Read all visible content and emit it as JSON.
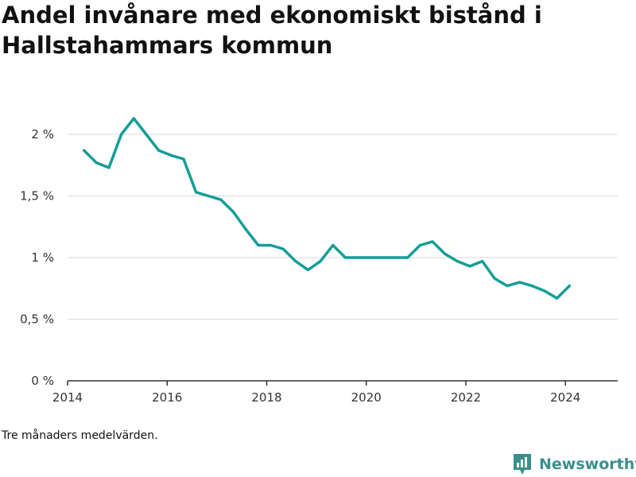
{
  "title": "Andel invånare med ekonomiskt bistånd i Hallstahammars kommun",
  "note": "Tre månaders medelvärden.",
  "brand": {
    "name": "Newsworthy",
    "icon": "newsworthy-logo-icon",
    "color": "#3a8f8c"
  },
  "colors": {
    "line": "#139e98",
    "grid": "#d9d9d9",
    "axis": "#333333",
    "tick_text": "#333333"
  },
  "chart_data": {
    "type": "line",
    "title": "Andel invånare med ekonomiskt bistånd i Hallstahammars kommun",
    "xlabel": "",
    "ylabel": "",
    "x_ticks": [
      "2014",
      "2016",
      "2018",
      "2020",
      "2022",
      "2024"
    ],
    "y_ticks": [
      "0 %",
      "0,5 %",
      "1 %",
      "1,5 %",
      "2 %"
    ],
    "y_tick_values": [
      0,
      0.5,
      1,
      1.5,
      2
    ],
    "xlim": [
      2014,
      2025.05
    ],
    "ylim": [
      0,
      2.2
    ],
    "grid": true,
    "series": [
      {
        "x": [
          2014.33,
          2014.58,
          2014.83,
          2015.08,
          2015.33,
          2015.58,
          2015.83,
          2016.08,
          2016.33,
          2016.58,
          2016.83,
          2017.08,
          2017.33,
          2017.58,
          2017.83,
          2018.08,
          2018.33,
          2018.58,
          2018.83,
          2019.08,
          2019.33,
          2019.58,
          2019.83,
          2020.08,
          2020.33,
          2020.58,
          2020.83,
          2021.08,
          2021.33,
          2021.58,
          2021.83,
          2022.08,
          2022.33,
          2022.58,
          2022.83,
          2023.08,
          2023.33,
          2023.58,
          2023.83,
          2024.08
        ],
        "values": [
          1.87,
          1.77,
          1.73,
          2.0,
          2.13,
          2.0,
          1.87,
          1.83,
          1.8,
          1.53,
          1.5,
          1.47,
          1.37,
          1.23,
          1.1,
          1.1,
          1.07,
          0.97,
          0.9,
          0.97,
          1.1,
          1.0,
          1.0,
          1.0,
          1.0,
          1.0,
          1.0,
          1.1,
          1.13,
          1.03,
          0.97,
          0.93,
          0.97,
          0.83,
          0.77,
          0.8,
          0.77,
          0.73,
          0.67,
          0.77
        ]
      }
    ]
  }
}
